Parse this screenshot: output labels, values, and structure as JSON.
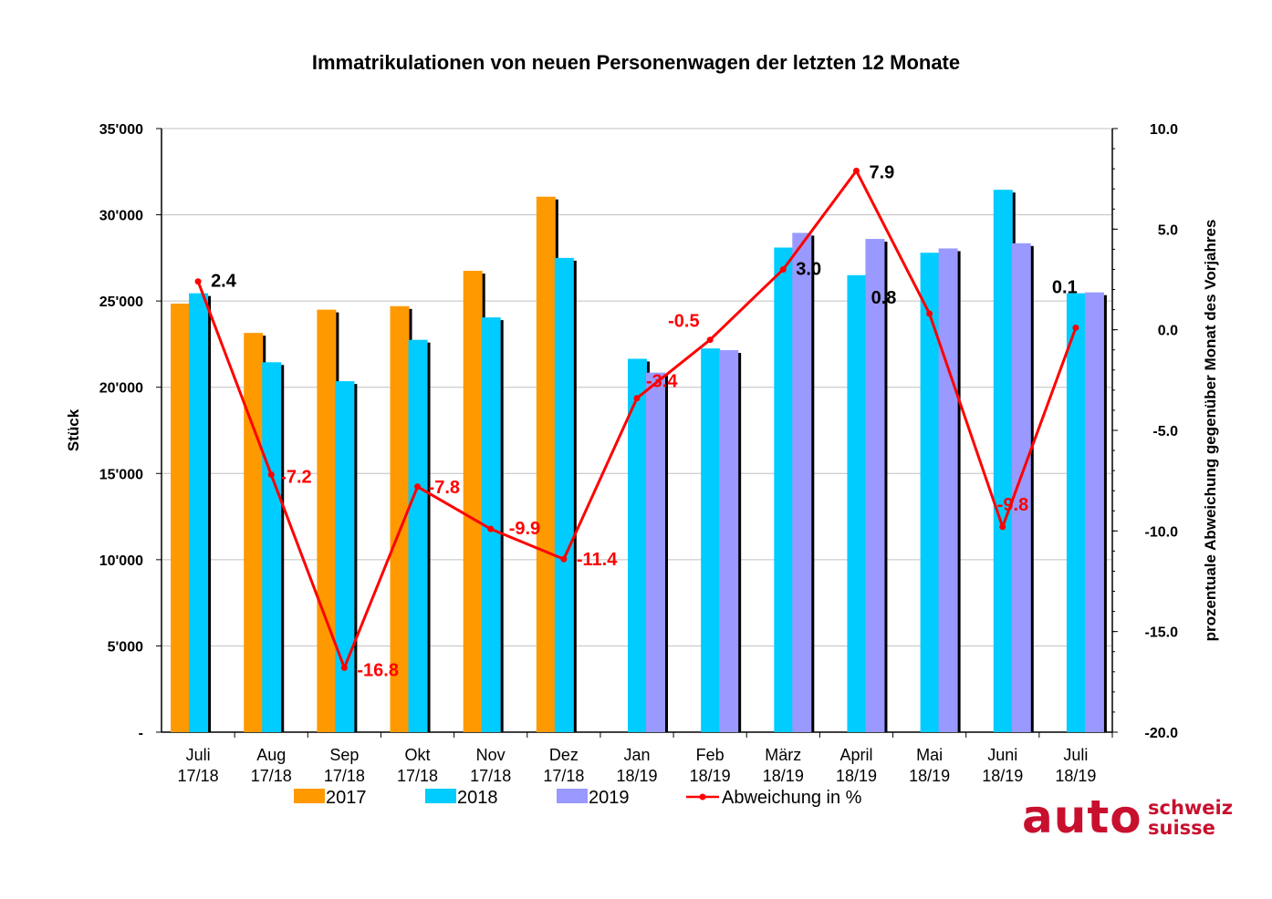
{
  "chart_data": {
    "type": "bar",
    "title": "Immatrikulationen von neuen Personenwagen der letzten 12 Monate",
    "ylabel": "Stück",
    "y2label": "prozentuale Abweichung gegenüber Monat des Vorjahres",
    "ylim": [
      0,
      35000
    ],
    "y2lim": [
      -20,
      10
    ],
    "yticks": [
      "-",
      "5'000",
      "10'000",
      "15'000",
      "20'000",
      "25'000",
      "30'000",
      "35'000"
    ],
    "y2ticks": [
      "-20.0",
      "-15.0",
      "-10.0",
      "-5.0",
      "0.0",
      "5.0",
      "10.0"
    ],
    "categories": [
      [
        "Juli",
        "17/18"
      ],
      [
        "Aug",
        "17/18"
      ],
      [
        "Sep",
        "17/18"
      ],
      [
        "Okt",
        "17/18"
      ],
      [
        "Nov",
        "17/18"
      ],
      [
        "Dez",
        "17/18"
      ],
      [
        "Jan",
        "18/19"
      ],
      [
        "Feb",
        "18/19"
      ],
      [
        "März",
        "18/19"
      ],
      [
        "April",
        "18/19"
      ],
      [
        "Mai",
        "18/19"
      ],
      [
        "Juni",
        "18/19"
      ],
      [
        "Juli",
        "18/19"
      ]
    ],
    "series": [
      {
        "name": "2017",
        "color": "#ff9900",
        "values": [
          24850,
          23150,
          24500,
          24700,
          26750,
          31050,
          null,
          null,
          null,
          null,
          null,
          null,
          null
        ]
      },
      {
        "name": "2018",
        "color": "#00ccff",
        "values": [
          25450,
          21450,
          20350,
          22750,
          24050,
          27500,
          21650,
          22250,
          28100,
          26500,
          27800,
          31450,
          25450
        ]
      },
      {
        "name": "2019",
        "color": "#9999ff",
        "values": [
          null,
          null,
          null,
          null,
          null,
          null,
          20850,
          22150,
          28950,
          28600,
          28050,
          28350,
          25500
        ]
      }
    ],
    "line": {
      "name": "Abweichung in %",
      "color": "#ff0000",
      "values": [
        2.4,
        -7.2,
        -16.8,
        -7.8,
        -9.9,
        -11.4,
        -3.4,
        -0.5,
        3.0,
        7.9,
        0.8,
        -9.8,
        0.1
      ],
      "labels": [
        "2.4",
        "-7.2",
        "-16.8",
        "-7.8",
        "-9.9",
        "-11.4",
        "-3.4",
        "-0.5",
        "3.0",
        "7.9",
        "0.8",
        "-9.8",
        "0.1"
      ]
    },
    "legend_position": "bottom"
  },
  "logo": {
    "word": "auto",
    "line1": "schweiz",
    "line2": "suisse"
  }
}
